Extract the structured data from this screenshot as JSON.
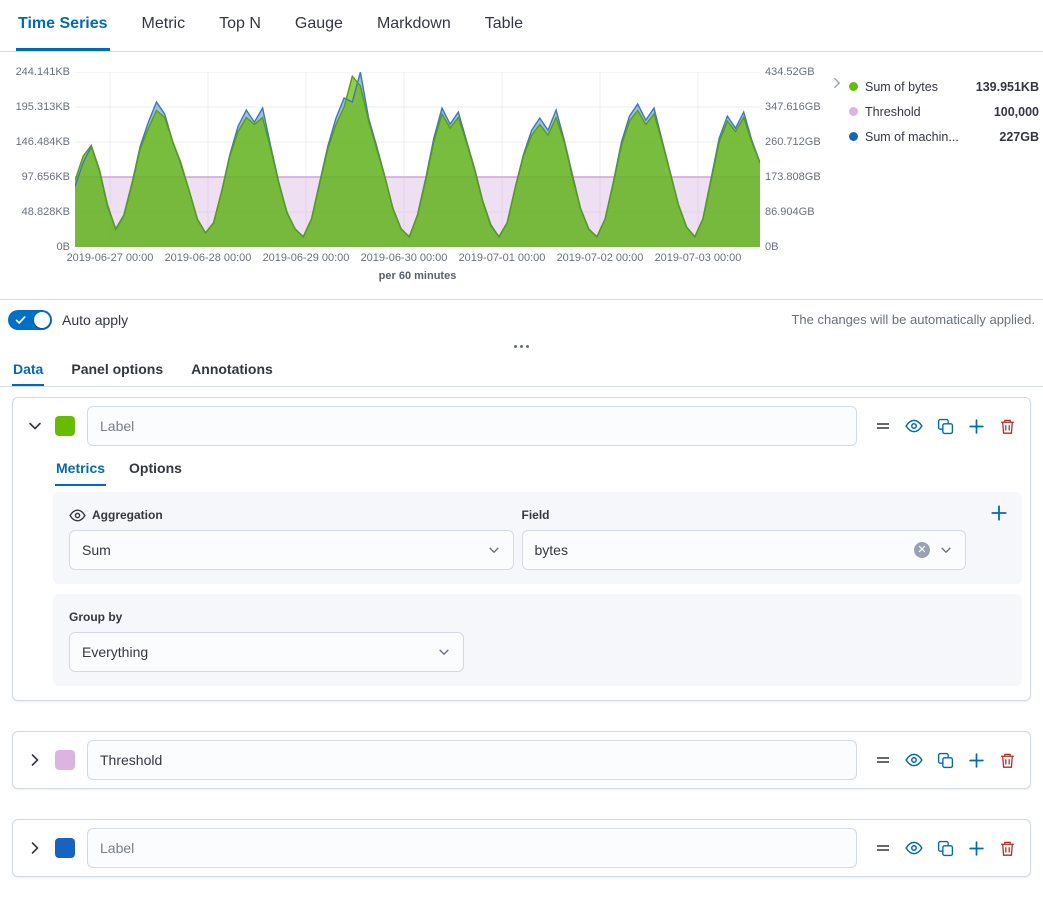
{
  "top_tabs": [
    {
      "label": "Time Series",
      "active": true
    },
    {
      "label": "Metric"
    },
    {
      "label": "Top N"
    },
    {
      "label": "Gauge"
    },
    {
      "label": "Markdown"
    },
    {
      "label": "Table"
    }
  ],
  "chart": {
    "y_axis_left": [
      "244.141KB",
      "195.313KB",
      "146.484KB",
      "97.656KB",
      "48.828KB",
      "0B"
    ],
    "y_axis_right": [
      "434.52GB",
      "347.616GB",
      "260.712GB",
      "173.808GB",
      "86.904GB",
      "0B"
    ],
    "x_axis": [
      "2019-06-27 00:00",
      "2019-06-28 00:00",
      "2019-06-29 00:00",
      "2019-06-30 00:00",
      "2019-07-01 00:00",
      "2019-07-02 00:00",
      "2019-07-03 00:00"
    ],
    "x_caption": "per 60 minutes",
    "legend": [
      {
        "label": "Sum of bytes",
        "value": "139.951KB",
        "color": "#68BC00"
      },
      {
        "label": "Threshold",
        "value": "100,000",
        "color": "#DDB3E2"
      },
      {
        "label": "Sum of machin...",
        "value": "227GB",
        "color": "#1565C0"
      }
    ]
  },
  "chart_data": {
    "type": "area",
    "x_range": [
      "2019-06-26 ~16:00",
      "2019-07-03 ~15:00"
    ],
    "left_axis_max": 250000,
    "right_axis_max": 434.52,
    "grid": true,
    "series": [
      {
        "name": "Sum of bytes",
        "axis": "left",
        "unit": "bytes",
        "color": "#68BC00",
        "stroke": "#5a9c10",
        "values": [
          95000,
          130000,
          145000,
          110000,
          60000,
          25000,
          45000,
          90000,
          140000,
          170000,
          195000,
          185000,
          150000,
          120000,
          80000,
          40000,
          20000,
          35000,
          80000,
          130000,
          165000,
          185000,
          175000,
          185000,
          140000,
          90000,
          50000,
          25000,
          15000,
          40000,
          90000,
          140000,
          175000,
          200000,
          244000,
          230000,
          180000,
          140000,
          100000,
          55000,
          25000,
          15000,
          45000,
          95000,
          150000,
          190000,
          170000,
          185000,
          150000,
          110000,
          65000,
          30000,
          15000,
          35000,
          85000,
          130000,
          160000,
          175000,
          160000,
          185000,
          150000,
          100000,
          55000,
          25000,
          15000,
          40000,
          90000,
          145000,
          180000,
          195000,
          175000,
          190000,
          150000,
          105000,
          60000,
          28000,
          15000,
          40000,
          95000,
          150000,
          180000,
          165000,
          185000,
          150000,
          120000
        ]
      },
      {
        "name": "Sum of machine.ram",
        "axis": "right",
        "unit": "GB",
        "color": "#5486C5",
        "stroke": "#3A77C2",
        "values": [
          150,
          210,
          250,
          190,
          100,
          45,
          80,
          160,
          250,
          310,
          360,
          330,
          260,
          205,
          140,
          70,
          35,
          60,
          140,
          230,
          300,
          340,
          310,
          345,
          250,
          160,
          85,
          45,
          25,
          70,
          160,
          250,
          320,
          370,
          360,
          434,
          320,
          250,
          175,
          95,
          45,
          25,
          80,
          170,
          270,
          345,
          305,
          335,
          265,
          195,
          115,
          55,
          25,
          60,
          150,
          230,
          290,
          320,
          290,
          340,
          265,
          180,
          95,
          45,
          25,
          70,
          160,
          260,
          325,
          355,
          315,
          345,
          265,
          185,
          105,
          50,
          25,
          70,
          170,
          270,
          325,
          295,
          335,
          265,
          210
        ]
      },
      {
        "name": "Threshold",
        "axis": "left",
        "type": "threshold_band",
        "value": 100000,
        "color": "#D9B2DF"
      }
    ]
  },
  "auto_apply": {
    "label": "Auto apply",
    "enabled": true,
    "note": "The changes will be automatically applied."
  },
  "editor_tabs": [
    {
      "label": "Data",
      "active": true
    },
    {
      "label": "Panel options"
    },
    {
      "label": "Annotations"
    }
  ],
  "series_panels": [
    {
      "color": "#68BC00",
      "label_value": "",
      "label_placeholder": "Label",
      "expanded": true,
      "tabs": [
        {
          "label": "Metrics",
          "active": true
        },
        {
          "label": "Options"
        }
      ],
      "aggregation": {
        "label": "Aggregation",
        "value": "Sum"
      },
      "field": {
        "label": "Field",
        "value": "bytes"
      },
      "group_by": {
        "label": "Group by",
        "value": "Everything"
      }
    },
    {
      "color": "#DDB3E2",
      "label_value": "Threshold",
      "label_placeholder": "Label",
      "expanded": false
    },
    {
      "color": "#1565C0",
      "label_value": "",
      "label_placeholder": "Label",
      "expanded": false
    }
  ]
}
